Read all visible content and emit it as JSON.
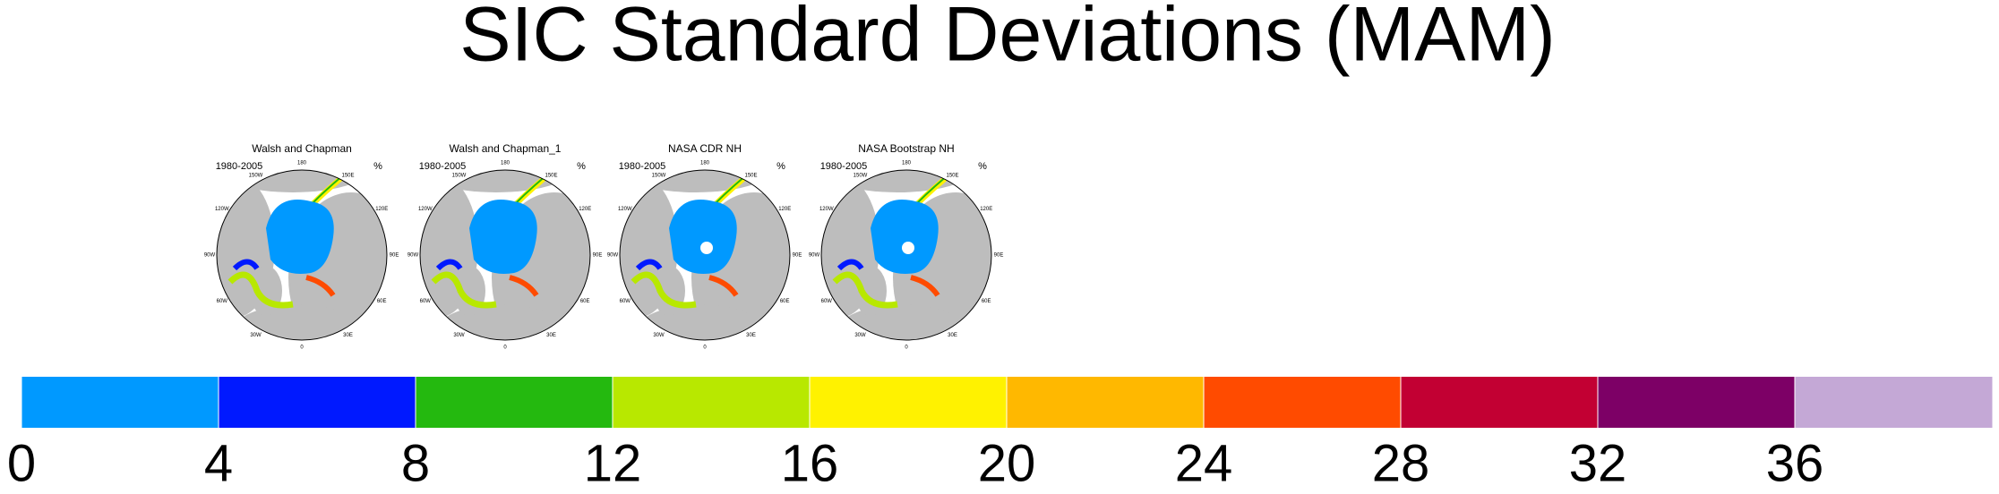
{
  "chart_data": {
    "type": "colorbar",
    "title": "SIC Standard Deviations (MAM)",
    "panels": [
      {
        "title": "Walsh and Chapman",
        "period": "1980-2005",
        "units": "%"
      },
      {
        "title": "Walsh and Chapman_1",
        "period": "1980-2005",
        "units": "%"
      },
      {
        "title": "NASA CDR NH",
        "period": "1980-2005",
        "units": "%"
      },
      {
        "title": "NASA Bootstrap NH",
        "period": "1980-2005",
        "units": "%"
      }
    ],
    "lon_labels": [
      "0",
      "30E",
      "60E",
      "90E",
      "120E",
      "150E",
      "180",
      "150W",
      "120W",
      "90W",
      "60W",
      "30W"
    ],
    "levels": [
      0,
      4,
      8,
      12,
      16,
      20,
      24,
      28,
      32,
      36
    ],
    "colors": [
      "#0099ff",
      "#0019ff",
      "#24b90f",
      "#b8e800",
      "#fff200",
      "#ffb800",
      "#ff4b00",
      "#c20033",
      "#7d0066",
      "#c4a8d6"
    ]
  }
}
